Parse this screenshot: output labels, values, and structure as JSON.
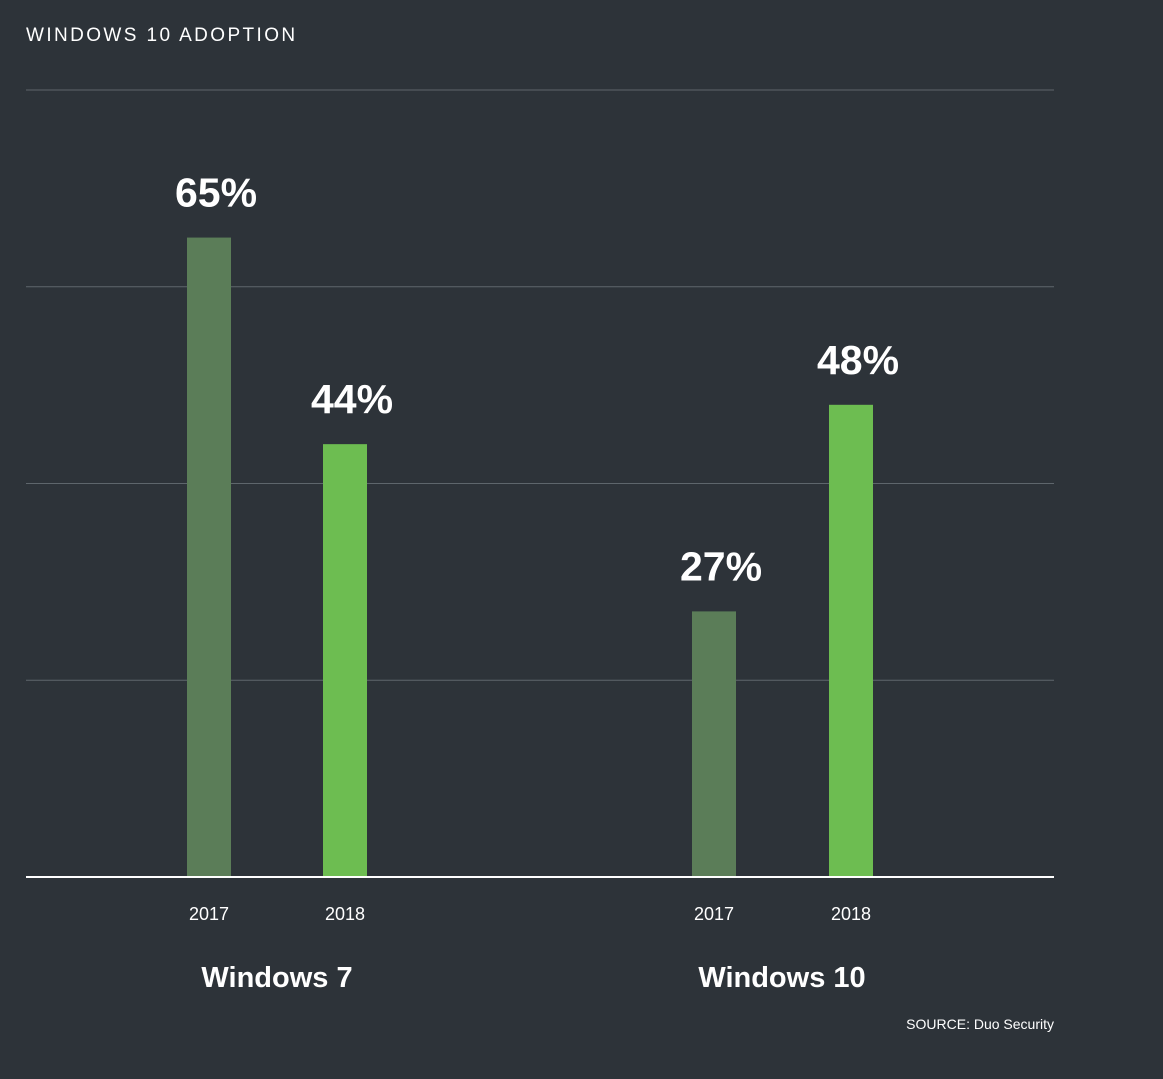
{
  "chart_data": {
    "type": "bar",
    "title": "WINDOWS 10 ADOPTION",
    "groups": [
      "Windows 7",
      "Windows 10"
    ],
    "categories": [
      "2017",
      "2018"
    ],
    "series": [
      {
        "name": "2017",
        "values": [
          65,
          27
        ],
        "labels": [
          "65%",
          "27%"
        ]
      },
      {
        "name": "2018",
        "values": [
          44,
          48
        ],
        "labels": [
          "44%",
          "48%"
        ]
      }
    ],
    "ylim": [
      0,
      80
    ],
    "gridlines": [
      20,
      40,
      60,
      80
    ],
    "xlabel": "",
    "ylabel": "",
    "grid": true,
    "source": "SOURCE: Duo Security"
  },
  "colors": {
    "background": "#2d3339",
    "gridline": "#5e666c",
    "baseline": "#ffffff",
    "text": "#ffffff",
    "bar_2017": "#5b7d58",
    "bar_2018": "#6dbd51"
  }
}
